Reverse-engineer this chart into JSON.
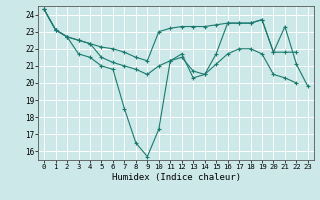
{
  "xlabel": "Humidex (Indice chaleur)",
  "ylabel": "",
  "bg_color": "#cce8e8",
  "line_color": "#1a7a6e",
  "grid_color": "#ffffff",
  "xlim": [
    -0.5,
    23.5
  ],
  "ylim": [
    15.5,
    24.5
  ],
  "yticks": [
    16,
    17,
    18,
    19,
    20,
    21,
    22,
    23,
    24
  ],
  "xticks": [
    0,
    1,
    2,
    3,
    4,
    5,
    6,
    7,
    8,
    9,
    10,
    11,
    12,
    13,
    14,
    15,
    16,
    17,
    18,
    19,
    20,
    21,
    22,
    23
  ],
  "series": [
    [
      24.3,
      23.1,
      22.7,
      21.7,
      21.5,
      21.0,
      20.8,
      18.5,
      16.5,
      15.7,
      17.3,
      21.3,
      21.7,
      20.3,
      20.5,
      21.7,
      23.5,
      23.5,
      23.5,
      23.7,
      21.8,
      23.3,
      21.1,
      19.8
    ],
    [
      24.3,
      23.1,
      22.7,
      22.5,
      22.3,
      22.1,
      22.0,
      21.8,
      21.5,
      21.3,
      23.0,
      23.2,
      23.3,
      23.3,
      23.3,
      23.4,
      23.5,
      23.5,
      23.5,
      23.7,
      21.8,
      21.8,
      21.8,
      null
    ],
    [
      24.3,
      23.1,
      22.7,
      22.5,
      22.3,
      21.5,
      21.2,
      21.0,
      20.8,
      20.5,
      21.0,
      21.3,
      21.5,
      20.7,
      20.5,
      21.1,
      21.7,
      22.0,
      22.0,
      21.7,
      20.5,
      20.3,
      20.0,
      null
    ]
  ]
}
